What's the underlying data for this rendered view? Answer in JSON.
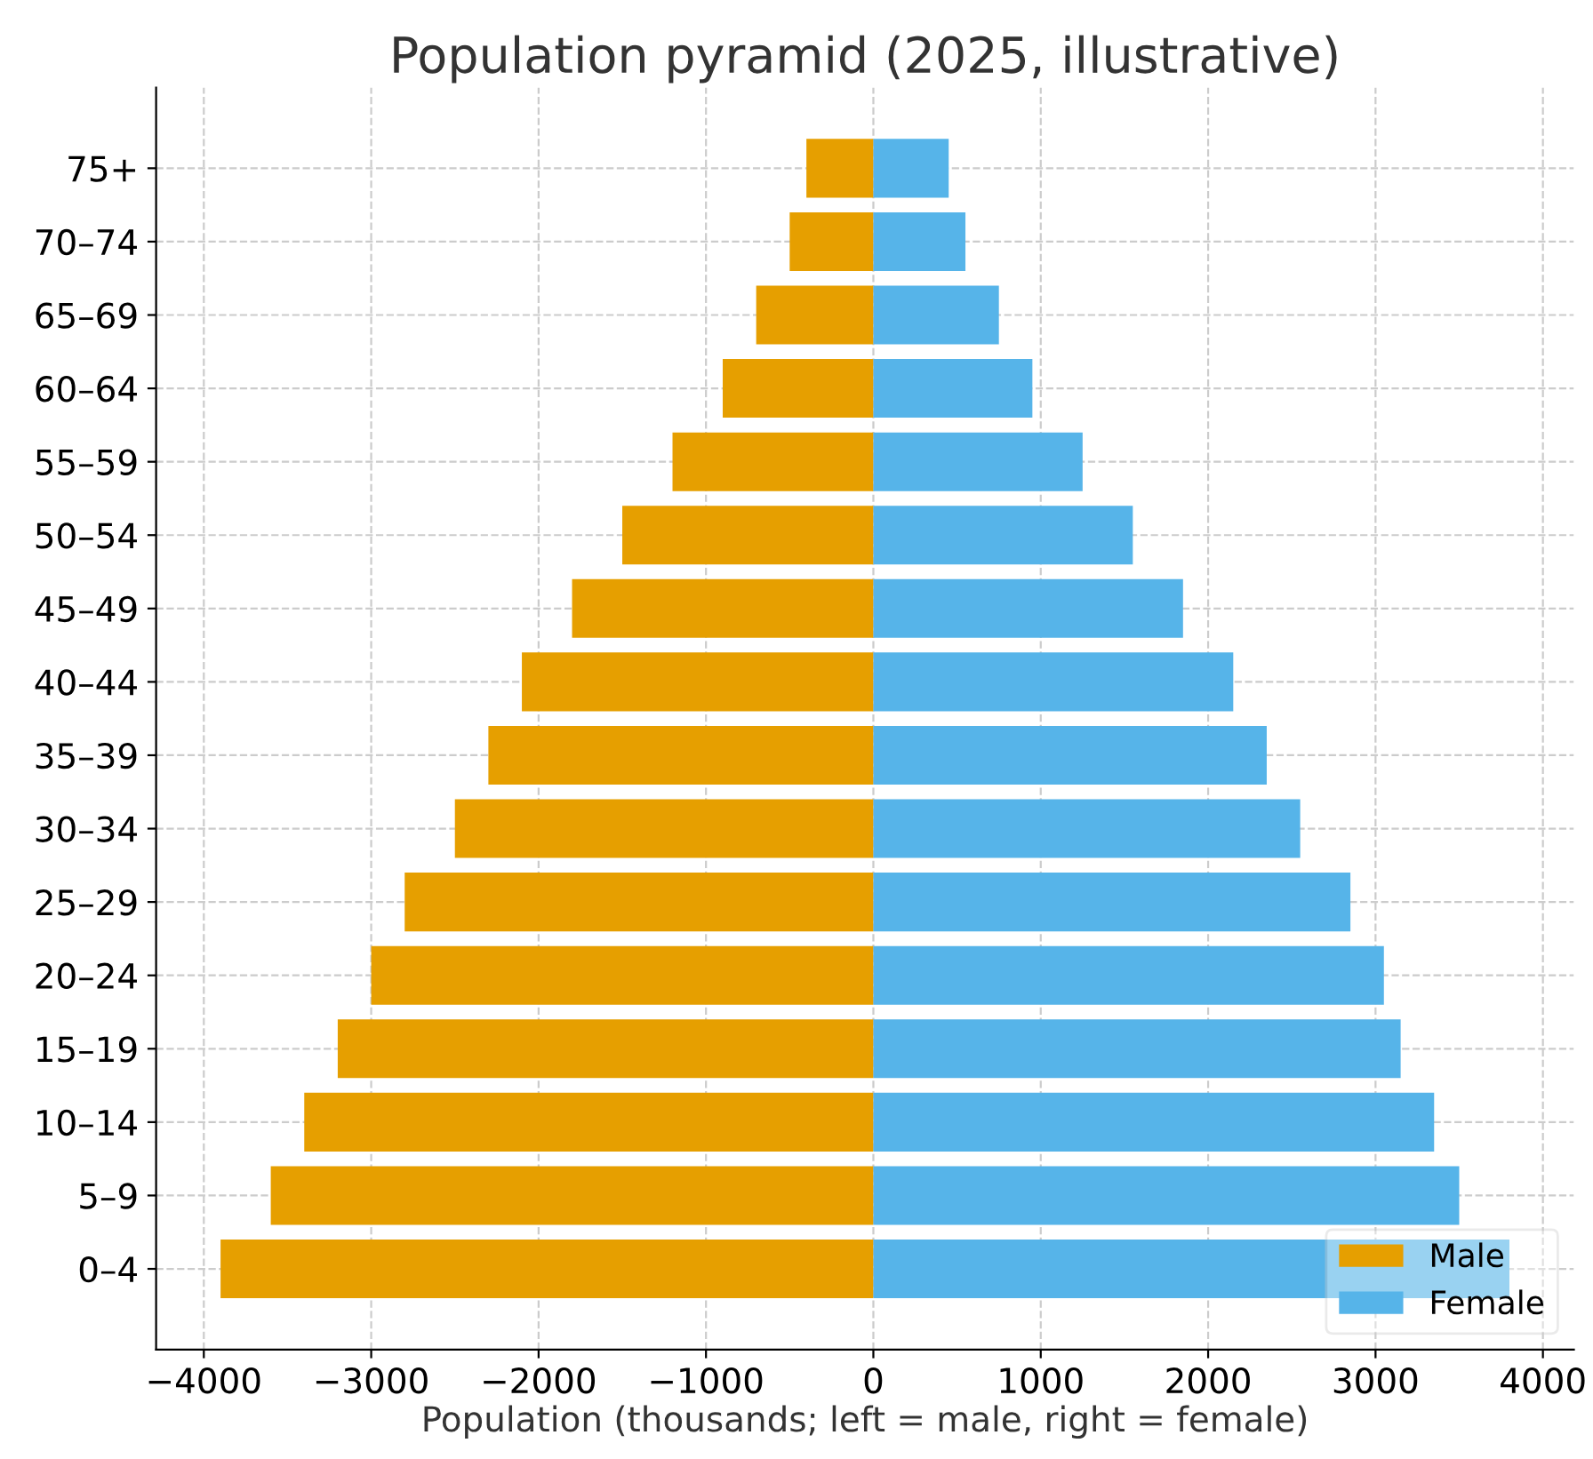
{
  "chart_data": {
    "type": "bar",
    "orientation": "horizontal",
    "title": "Population pyramid (2025, illustrative)",
    "xlabel": "Population (thousands; left = male, right = female)",
    "categories": [
      "75+",
      "70–74",
      "65–69",
      "60–64",
      "55–59",
      "50–54",
      "45–49",
      "40–44",
      "35–39",
      "30–34",
      "25–29",
      "20–24",
      "15–19",
      "10–14",
      "5–9",
      "0–4"
    ],
    "series": [
      {
        "name": "Male",
        "color": "#e69f00",
        "values": [
          -400,
          -500,
          -700,
          -900,
          -1200,
          -1500,
          -1800,
          -2100,
          -2300,
          -2500,
          -2800,
          -3000,
          -3200,
          -3400,
          -3600,
          -3900
        ]
      },
      {
        "name": "Female",
        "color": "#56b4e9",
        "values": [
          450,
          550,
          750,
          950,
          1250,
          1550,
          1850,
          2150,
          2350,
          2550,
          2850,
          3050,
          3150,
          3350,
          3500,
          3800
        ]
      }
    ],
    "xlim": [
      -4285,
      4185
    ],
    "xticks": [
      {
        "value": -4000,
        "label": "−4000"
      },
      {
        "value": -3000,
        "label": "−3000"
      },
      {
        "value": -2000,
        "label": "−2000"
      },
      {
        "value": -1000,
        "label": "−1000"
      },
      0,
      1000,
      2000,
      3000,
      4000
    ],
    "stacked": true,
    "grid": true,
    "legend": "bottom right"
  }
}
